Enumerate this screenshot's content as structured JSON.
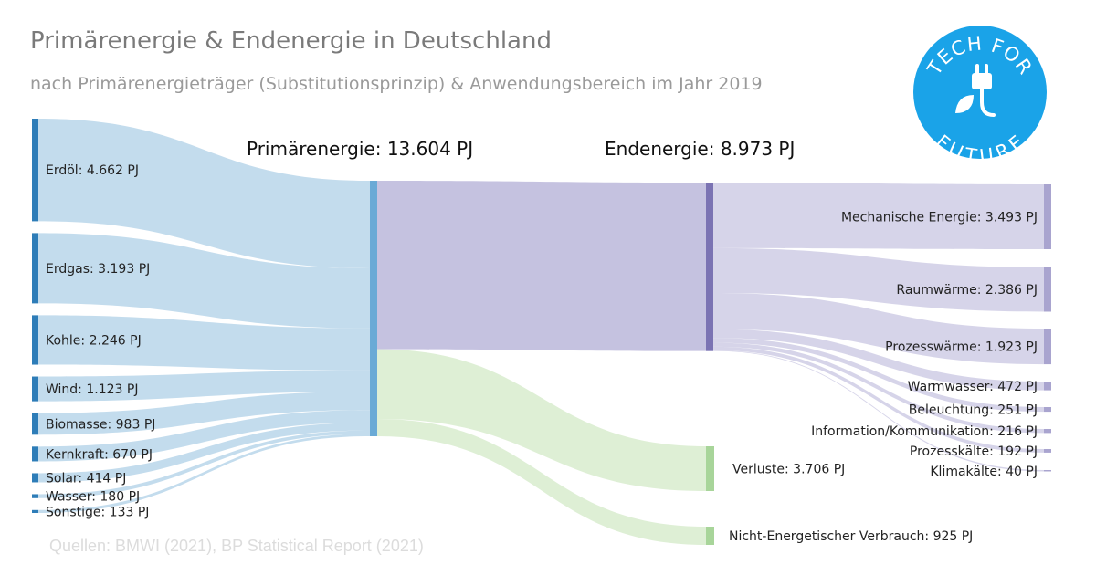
{
  "title": "Primärenergie & Endenergie in Deutschland",
  "subtitle": "nach Primärenergieträger (Substitutionsprinzip) & Anwendungsbereich im Jahr 2019",
  "source": "Quellen: BMWI (2021), BP Statistical Report (2021)",
  "logo": {
    "top_text": "TECH FOR",
    "bottom_text": "FUTURE",
    "icon": "plug-leaf-icon",
    "color": "#1aa3e8"
  },
  "colors": {
    "primary": "#b8d6ea",
    "primary_bar": "#6aaad6",
    "left_bar": "#2e7db8",
    "end": "#c5c2e0",
    "end_bar": "#7b73b3",
    "loss": "#d6ebcb",
    "loss_bar": "#a8d59a",
    "use_bar": "#a9a4cf"
  },
  "chart_data": {
    "type": "sankey",
    "unit": "PJ",
    "headers": {
      "primary": "Primärenergie: 13.604 PJ",
      "final": "Endenergie: 8.973 PJ"
    },
    "sources": [
      {
        "name": "Erdöl",
        "value": 4662,
        "label": "Erdöl: 4.662 PJ"
      },
      {
        "name": "Erdgas",
        "value": 3193,
        "label": "Erdgas: 3.193 PJ"
      },
      {
        "name": "Kohle",
        "value": 2246,
        "label": "Kohle: 2.246 PJ"
      },
      {
        "name": "Wind",
        "value": 1123,
        "label": "Wind: 1.123 PJ"
      },
      {
        "name": "Biomasse",
        "value": 983,
        "label": "Biomasse: 983 PJ"
      },
      {
        "name": "Kernkraft",
        "value": 670,
        "label": "Kernkraft: 670 PJ"
      },
      {
        "name": "Solar",
        "value": 414,
        "label": "Solar: 414 PJ"
      },
      {
        "name": "Wasser",
        "value": 180,
        "label": "Wasser: 180 PJ"
      },
      {
        "name": "Sonstige",
        "value": 133,
        "label": "Sonstige: 133 PJ"
      }
    ],
    "primary_total": 13604,
    "primary_split": [
      {
        "name": "Endenergie",
        "value": 8973
      },
      {
        "name": "Verluste",
        "value": 3706,
        "label": "Verluste: 3.706 PJ"
      },
      {
        "name": "Nicht-Energetischer Verbrauch",
        "value": 925,
        "label": "Nicht-Energetischer Verbrauch: 925 PJ"
      }
    ],
    "final_total": 8973,
    "uses": [
      {
        "name": "Mechanische Energie",
        "value": 3493,
        "label": "Mechanische Energie: 3.493 PJ"
      },
      {
        "name": "Raumwärme",
        "value": 2386,
        "label": "Raumwärme: 2.386 PJ"
      },
      {
        "name": "Prozesswärme",
        "value": 1923,
        "label": "Prozesswärme: 1.923 PJ"
      },
      {
        "name": "Warmwasser",
        "value": 472,
        "label": "Warmwasser: 472 PJ"
      },
      {
        "name": "Beleuchtung",
        "value": 251,
        "label": "Beleuchtung: 251 PJ"
      },
      {
        "name": "Information/Kommunikation",
        "value": 216,
        "label": "Information/Kommunikation: 216 PJ"
      },
      {
        "name": "Prozesskälte",
        "value": 192,
        "label": "Prozesskälte: 192 PJ"
      },
      {
        "name": "Klimakälte",
        "value": 40,
        "label": "Klimakälte: 40 PJ"
      }
    ]
  }
}
